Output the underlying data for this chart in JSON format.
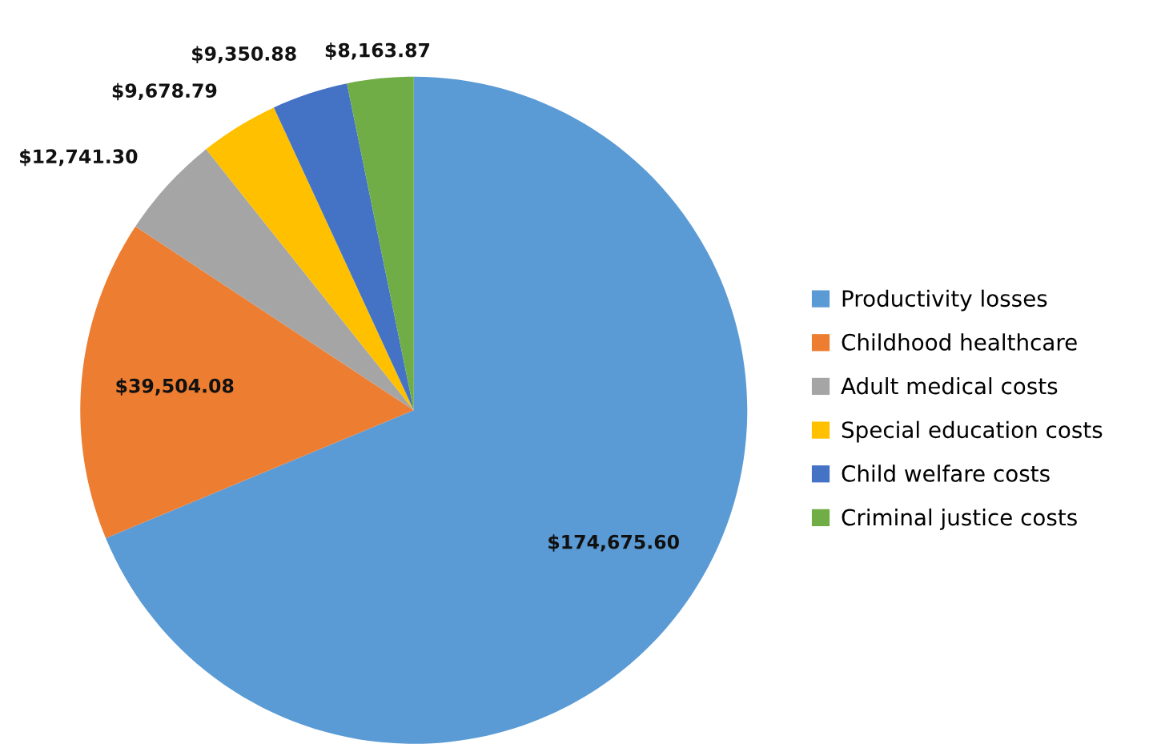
{
  "chart_data": {
    "type": "pie",
    "categories": [
      "Productivity losses",
      "Childhood healthcare",
      "Adult medical costs",
      "Special education costs",
      "Child welfare costs",
      "Criminal justice costs"
    ],
    "values": [
      174675.6,
      39504.08,
      12741.3,
      9678.79,
      9350.88,
      8163.87
    ],
    "value_labels": [
      "$174,675.60",
      "$39,504.08",
      "$12,741.30",
      "$9,678.79",
      "$9,350.88",
      "$8,163.87"
    ],
    "colors": [
      "#5b9bd5",
      "#ed7d31",
      "#a5a5a5",
      "#ffc000",
      "#4472c4",
      "#70ad47"
    ],
    "legend": "right"
  }
}
